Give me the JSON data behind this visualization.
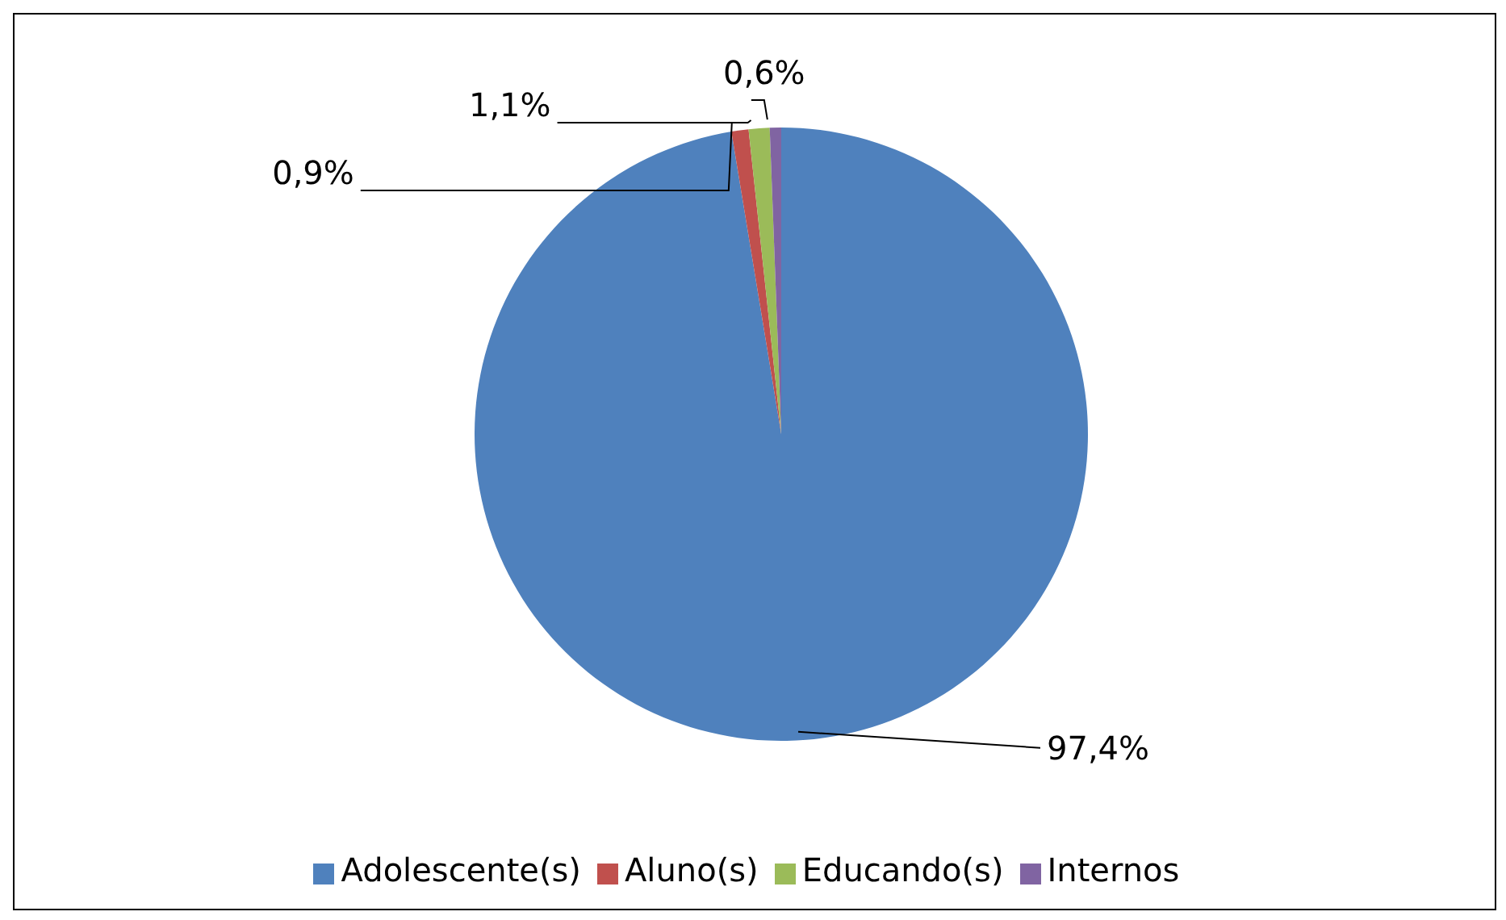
{
  "chart_data": {
    "type": "pie",
    "categories": [
      "Adolescente(s)",
      "Aluno(s)",
      "Educando(s)",
      "Internos"
    ],
    "values": [
      97.4,
      0.9,
      1.1,
      0.6
    ],
    "colors": [
      "#4f81bd",
      "#c0504d",
      "#9bbb59",
      "#8064a2"
    ],
    "value_labels": [
      "97,4%",
      "0,9%",
      "1,1%",
      "0,6%"
    ],
    "legend": "bottom"
  }
}
